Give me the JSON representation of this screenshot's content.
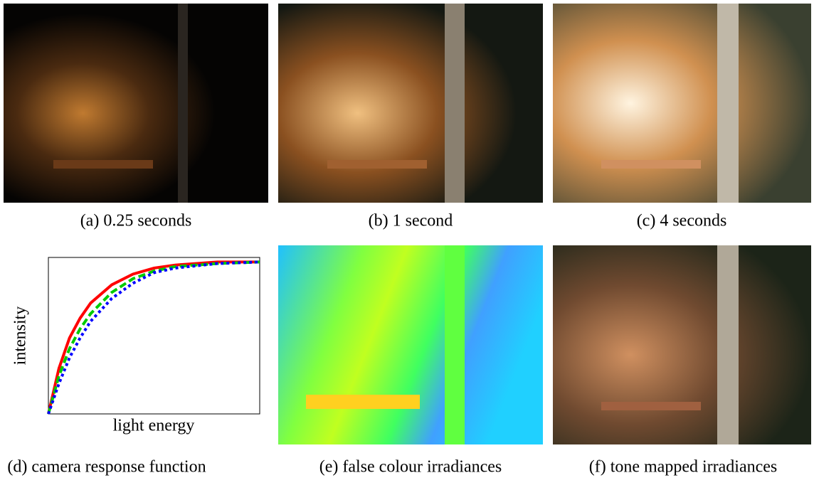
{
  "panels": [
    {
      "caption": "(a) 0.25 seconds"
    },
    {
      "caption": "(b) 1 second"
    },
    {
      "caption": "(c) 4 seconds"
    },
    {
      "caption": "(d) camera response function",
      "chart_data": {
        "type": "line",
        "xlabel": "light energy",
        "ylabel": "intensity",
        "x": [
          0,
          0.05,
          0.1,
          0.15,
          0.2,
          0.3,
          0.4,
          0.5,
          0.6,
          0.8,
          1.0
        ],
        "xlim": [
          0,
          1
        ],
        "ylim": [
          0,
          1.03
        ],
        "series": [
          {
            "color": "#ff0000",
            "dash": "solid",
            "values": [
              0,
              0.3,
              0.5,
              0.63,
              0.73,
              0.85,
              0.92,
              0.96,
              0.98,
              1,
              1
            ]
          },
          {
            "color": "#00cc00",
            "dash": "dashed",
            "values": [
              0,
              0.25,
              0.43,
              0.56,
              0.66,
              0.8,
              0.89,
              0.94,
              0.97,
              0.99,
              1
            ]
          },
          {
            "color": "#0000ff",
            "dash": "dotted",
            "values": [
              0,
              0.2,
              0.37,
              0.5,
              0.61,
              0.76,
              0.86,
              0.93,
              0.96,
              0.99,
              1
            ]
          }
        ]
      }
    },
    {
      "caption": "(e) false colour irradiances"
    },
    {
      "caption": "(f) tone mapped irradiances"
    }
  ]
}
